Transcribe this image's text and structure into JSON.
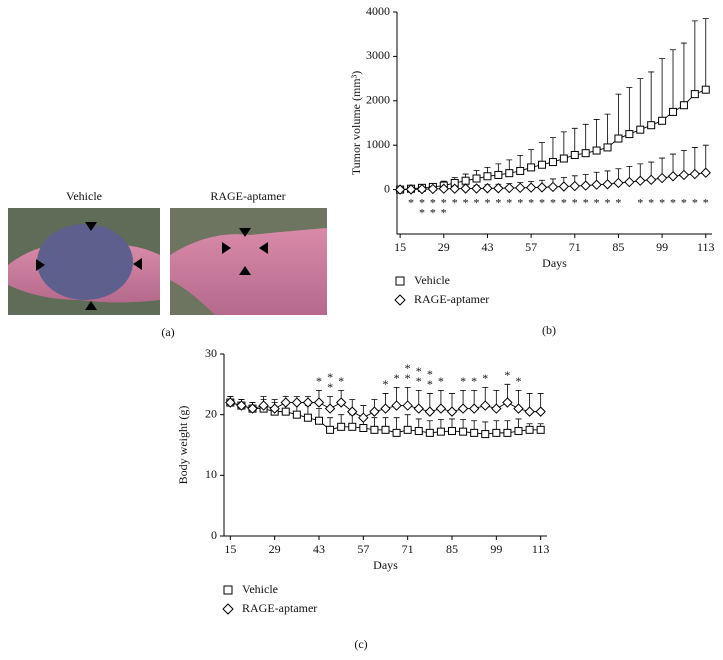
{
  "photos": {
    "labels": [
      "Vehicle",
      "RAGE-aptamer"
    ],
    "caption": "(a)"
  },
  "chart_data": [
    {
      "type": "line",
      "caption": "(b)",
      "xlabel": "Days",
      "ylabel": "Tumor volume (mm³)",
      "x": [
        15,
        18.5,
        22,
        25.5,
        29,
        32.5,
        36,
        39.5,
        43,
        46.5,
        50,
        53.5,
        57,
        60.5,
        64,
        67.5,
        71,
        74.5,
        78,
        81.5,
        85,
        88.5,
        92,
        95.5,
        99,
        102.5,
        106,
        109.5,
        113
      ],
      "xlim": [
        14,
        115
      ],
      "xticks": [
        15,
        29,
        43,
        57,
        71,
        85,
        99,
        113
      ],
      "ylim": [
        -1000,
        4000
      ],
      "yticks": [
        0,
        1000,
        2000,
        3000,
        4000
      ],
      "series": [
        {
          "name": "Vehicle",
          "color": "#000000",
          "marker": "square",
          "values": [
            0,
            20,
            40,
            60,
            90,
            150,
            200,
            250,
            300,
            330,
            370,
            420,
            500,
            560,
            620,
            700,
            780,
            820,
            880,
            950,
            1150,
            1250,
            1350,
            1450,
            1550,
            1750,
            1900,
            2150,
            2250
          ],
          "errors": [
            20,
            40,
            60,
            80,
            100,
            120,
            150,
            180,
            200,
            250,
            300,
            350,
            400,
            500,
            550,
            600,
            600,
            650,
            700,
            750,
            1000,
            1050,
            1150,
            1200,
            1400,
            1400,
            1400,
            1650,
            1600
          ]
        },
        {
          "name": "RAGE-aptamer",
          "color": "#000000",
          "marker": "diamond",
          "values": [
            0,
            5,
            10,
            15,
            20,
            20,
            25,
            25,
            30,
            30,
            35,
            40,
            45,
            50,
            60,
            70,
            80,
            90,
            110,
            120,
            150,
            170,
            200,
            220,
            260,
            300,
            330,
            350,
            380
          ],
          "errors": [
            10,
            20,
            30,
            40,
            40,
            60,
            60,
            70,
            80,
            90,
            100,
            120,
            140,
            160,
            180,
            200,
            230,
            250,
            280,
            300,
            320,
            350,
            380,
            400,
            450,
            500,
            550,
            600,
            620
          ]
        }
      ],
      "significance_mark": "*",
      "significance_position": "below",
      "significance_counts": [
        0,
        1,
        2,
        2,
        2,
        1,
        1,
        1,
        1,
        1,
        1,
        1,
        1,
        1,
        1,
        1,
        1,
        1,
        1,
        1,
        1,
        0,
        1,
        1,
        1,
        1,
        1,
        1,
        1
      ]
    },
    {
      "type": "line",
      "caption": "(c)",
      "xlabel": "Days",
      "ylabel": "Body weight (g)",
      "x": [
        15,
        18.5,
        22,
        25.5,
        29,
        32.5,
        36,
        39.5,
        43,
        46.5,
        50,
        53.5,
        57,
        60.5,
        64,
        67.5,
        71,
        74.5,
        78,
        81.5,
        85,
        88.5,
        92,
        95.5,
        99,
        102.5,
        106,
        109.5,
        113
      ],
      "xlim": [
        13,
        115
      ],
      "xticks": [
        15,
        29,
        43,
        57,
        71,
        85,
        99,
        113
      ],
      "ylim": [
        0,
        30
      ],
      "yticks": [
        0,
        10,
        20,
        30
      ],
      "series": [
        {
          "name": "Vehicle",
          "color": "#000000",
          "marker": "square",
          "values": [
            22,
            21.5,
            21,
            21,
            20.5,
            20.5,
            20,
            19.5,
            19,
            17.5,
            18,
            18,
            17.8,
            17.5,
            17.5,
            17,
            17.5,
            17.3,
            17,
            17.2,
            17.3,
            17.2,
            17,
            16.8,
            17,
            17,
            17.3,
            17.5,
            17.5
          ],
          "errors": [
            1,
            1,
            1,
            1.5,
            1.5,
            1.5,
            2,
            2,
            2,
            2,
            2,
            2,
            2,
            2,
            2,
            2.5,
            2.5,
            2,
            2,
            2,
            2,
            2,
            2,
            2,
            2,
            2,
            2,
            1,
            1
          ]
        },
        {
          "name": "RAGE-aptamer",
          "color": "#000000",
          "marker": "diamond",
          "values": [
            22,
            21.5,
            21,
            21.5,
            21,
            22,
            22,
            22,
            22,
            21,
            22,
            20.5,
            19.5,
            20.5,
            21,
            21.5,
            21.5,
            21,
            20.5,
            21,
            20.5,
            21,
            21,
            21.5,
            21,
            22,
            21,
            20.5,
            20.5
          ],
          "errors": [
            1,
            1,
            1,
            1.5,
            1.5,
            1,
            1,
            1,
            2,
            2,
            2,
            2,
            2,
            2,
            2.5,
            3,
            3,
            3,
            3,
            3,
            3,
            3,
            3,
            3,
            3,
            3,
            3,
            3,
            3
          ]
        }
      ],
      "significance_mark": "*",
      "significance_position": "above",
      "significance_counts": [
        0,
        0,
        0,
        0,
        0,
        0,
        0,
        0,
        1,
        2,
        1,
        0,
        0,
        0,
        1,
        1,
        2,
        2,
        2,
        1,
        0,
        1,
        1,
        1,
        0,
        1,
        1,
        0,
        0
      ]
    }
  ]
}
